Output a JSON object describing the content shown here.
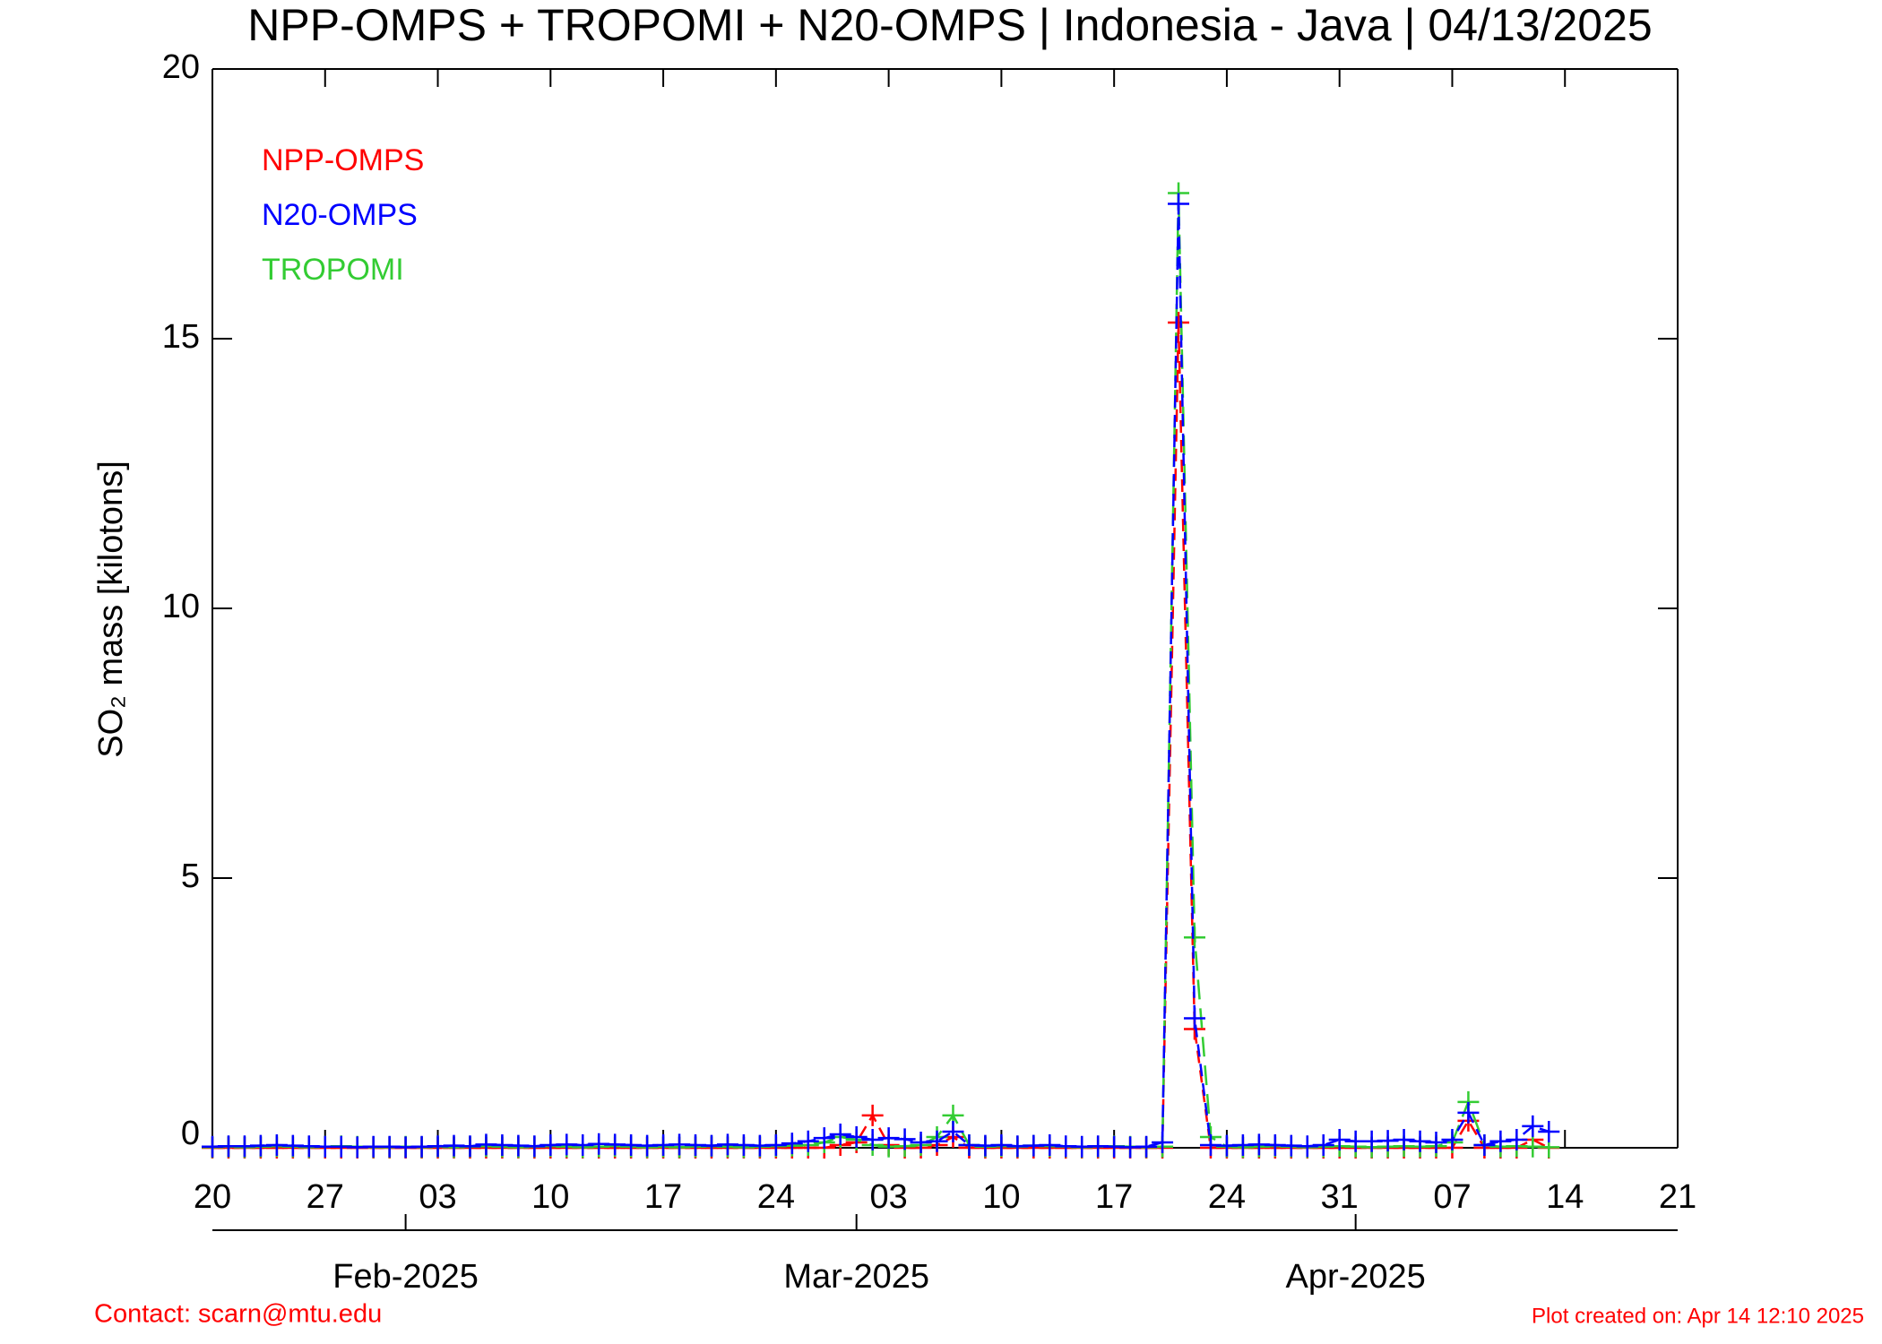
{
  "chart_data": {
    "type": "line",
    "title": "NPP-OMPS + TROPOMI + N20-OMPS | Indonesia - Java | 04/13/2025",
    "y_label": "SO₂ mass [kilotons]",
    "contact": "Contact: scarn@mtu.edu",
    "created": "Plot created on: Apr 14 12:10 2025",
    "x": [
      "2025-01-20",
      "2025-01-21",
      "2025-01-22",
      "2025-01-23",
      "2025-01-24",
      "2025-01-25",
      "2025-01-26",
      "2025-01-27",
      "2025-01-28",
      "2025-01-29",
      "2025-01-30",
      "2025-01-31",
      "2025-02-01",
      "2025-02-02",
      "2025-02-03",
      "2025-02-04",
      "2025-02-05",
      "2025-02-06",
      "2025-02-07",
      "2025-02-08",
      "2025-02-09",
      "2025-02-10",
      "2025-02-11",
      "2025-02-12",
      "2025-02-13",
      "2025-02-14",
      "2025-02-15",
      "2025-02-16",
      "2025-02-17",
      "2025-02-18",
      "2025-02-19",
      "2025-02-20",
      "2025-02-21",
      "2025-02-22",
      "2025-02-23",
      "2025-02-24",
      "2025-02-25",
      "2025-02-26",
      "2025-02-27",
      "2025-02-28",
      "2025-03-01",
      "2025-03-02",
      "2025-03-03",
      "2025-03-04",
      "2025-03-05",
      "2025-03-06",
      "2025-03-07",
      "2025-03-08",
      "2025-03-09",
      "2025-03-10",
      "2025-03-11",
      "2025-03-12",
      "2025-03-13",
      "2025-03-14",
      "2025-03-15",
      "2025-03-16",
      "2025-03-17",
      "2025-03-18",
      "2025-03-19",
      "2025-03-20",
      "2025-03-21",
      "2025-03-22",
      "2025-03-23",
      "2025-03-24",
      "2025-03-25",
      "2025-03-26",
      "2025-03-27",
      "2025-03-28",
      "2025-03-29",
      "2025-03-30",
      "2025-03-31",
      "2025-04-01",
      "2025-04-02",
      "2025-04-03",
      "2025-04-04",
      "2025-04-05",
      "2025-04-06",
      "2025-04-07",
      "2025-04-08",
      "2025-04-09",
      "2025-04-10",
      "2025-04-11",
      "2025-04-12",
      "2025-04-13"
    ],
    "series": [
      {
        "name": "NPP-OMPS",
        "color": "#ff0000",
        "dash": "dashed",
        "values": [
          0,
          0,
          0,
          0,
          0,
          0,
          0,
          0,
          0,
          0,
          0,
          0,
          0,
          0,
          0,
          0,
          0,
          0,
          0,
          0,
          0,
          0,
          0,
          0,
          0,
          0,
          0,
          0,
          0,
          0,
          0,
          0,
          0,
          0,
          0,
          0,
          0,
          0,
          0,
          0.05,
          0.1,
          0.6,
          0.05,
          0,
          0,
          0.05,
          0.2,
          0,
          0,
          0,
          0,
          0,
          0,
          0,
          0,
          0,
          0,
          0,
          0,
          0,
          15.3,
          2.2,
          0,
          0,
          0,
          0,
          0,
          0,
          0,
          0,
          0,
          0,
          0,
          0,
          0,
          0,
          0,
          0,
          0.5,
          0,
          0,
          0,
          0.15,
          0
        ]
      },
      {
        "name": "N20-OMPS",
        "color": "#0000ff",
        "dash": "dashed",
        "values": [
          0.02,
          0.03,
          0.03,
          0.04,
          0.05,
          0.04,
          0.03,
          0.02,
          0.02,
          0.01,
          0.02,
          0.02,
          0.01,
          0.02,
          0.03,
          0.04,
          0.03,
          0.06,
          0.05,
          0.04,
          0.03,
          0.05,
          0.06,
          0.05,
          0.07,
          0.06,
          0.05,
          0.04,
          0.05,
          0.06,
          0.05,
          0.04,
          0.06,
          0.05,
          0.04,
          0.05,
          0.08,
          0.12,
          0.18,
          0.25,
          0.2,
          0.15,
          0.18,
          0.16,
          0.1,
          0.12,
          0.3,
          0.05,
          0.04,
          0.05,
          0.03,
          0.04,
          0.05,
          0.03,
          0.02,
          0.03,
          0.02,
          0.01,
          0.02,
          0.1,
          17.5,
          2.4,
          0.05,
          0.04,
          0.05,
          0.06,
          0.05,
          0.04,
          0.03,
          0.05,
          0.15,
          0.12,
          0.12,
          0.13,
          0.15,
          0.12,
          0.1,
          0.15,
          0.65,
          0.05,
          0.12,
          0.15,
          0.4,
          0.3
        ]
      },
      {
        "name": "TROPOMI",
        "color": "#33cc33",
        "dash": "longdash",
        "values": [
          0.01,
          0.02,
          0.01,
          0.02,
          0.03,
          0.02,
          0.01,
          0.02,
          0.03,
          0.02,
          0.01,
          0.01,
          0.02,
          0.01,
          0.02,
          0.01,
          0.02,
          0.03,
          0.02,
          0.01,
          0.02,
          0.03,
          0.02,
          0.01,
          0.02,
          0.03,
          0.02,
          0.01,
          0.02,
          0.01,
          0.02,
          0.03,
          0.02,
          0.01,
          0.02,
          0.03,
          0.04,
          0.05,
          0.1,
          0.2,
          0.15,
          0.05,
          0.02,
          0.03,
          0.05,
          0.2,
          0.6,
          0.05,
          0.02,
          0.03,
          0.02,
          0.04,
          0.03,
          0.02,
          0.01,
          0.02,
          0.03,
          0.02,
          0.01,
          0.02,
          17.7,
          3.9,
          0.2,
          0.02,
          0.01,
          0.02,
          0.03,
          0.02,
          0.01,
          0.02,
          0.03,
          0.02,
          0.01,
          0.02,
          0.03,
          0.02,
          0.03,
          0.1,
          0.85,
          0.05,
          0.02,
          0.03,
          0.02,
          0.01
        ]
      }
    ],
    "xlim": [
      "2025-01-20",
      "2025-04-21"
    ],
    "xticks": [
      {
        "value": "2025-01-20",
        "label": "20"
      },
      {
        "value": "2025-01-27",
        "label": "27"
      },
      {
        "value": "2025-02-03",
        "label": "03"
      },
      {
        "value": "2025-02-10",
        "label": "10"
      },
      {
        "value": "2025-02-17",
        "label": "17"
      },
      {
        "value": "2025-02-24",
        "label": "24"
      },
      {
        "value": "2025-03-03",
        "label": "03"
      },
      {
        "value": "2025-03-10",
        "label": "10"
      },
      {
        "value": "2025-03-17",
        "label": "17"
      },
      {
        "value": "2025-03-24",
        "label": "24"
      },
      {
        "value": "2025-03-31",
        "label": "31"
      },
      {
        "value": "2025-04-07",
        "label": "07"
      },
      {
        "value": "2025-04-14",
        "label": "14"
      },
      {
        "value": "2025-04-21",
        "label": "21"
      }
    ],
    "month_ticks": [
      {
        "value": "2025-02-01",
        "label": "Feb-2025"
      },
      {
        "value": "2025-03-01",
        "label": "Mar-2025"
      },
      {
        "value": "2025-04-01",
        "label": "Apr-2025"
      }
    ],
    "ylim": [
      0,
      20
    ],
    "yticks": [
      0,
      5,
      10,
      15,
      20
    ]
  }
}
